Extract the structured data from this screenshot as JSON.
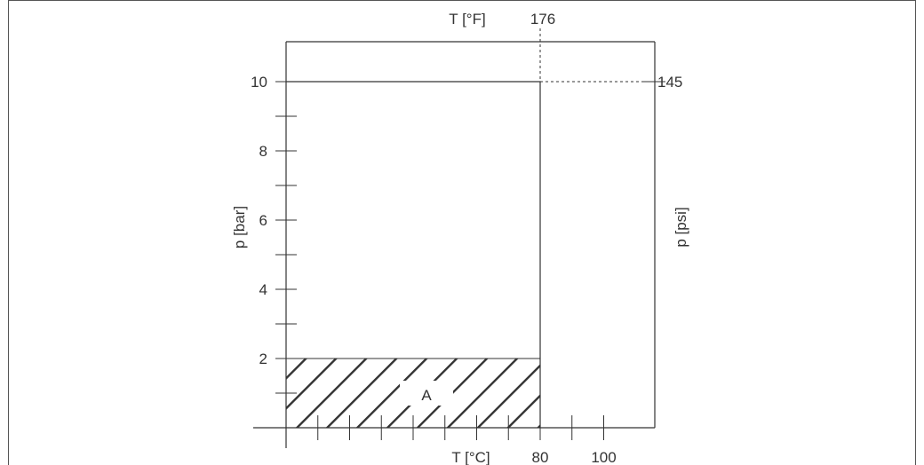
{
  "chart_data": {
    "type": "area",
    "title": "",
    "left_axis": {
      "label": "p [bar]",
      "range": [
        0,
        11
      ],
      "labeled_ticks": [
        2,
        4,
        6,
        8,
        10
      ],
      "minor_ticks": [
        1,
        3,
        5,
        7,
        9
      ],
      "tick_labels": [
        "2",
        "4",
        "6",
        "8",
        "10"
      ]
    },
    "right_axis": {
      "label": "p [psi]",
      "marked_value": "145",
      "marked_at_bar": 10
    },
    "bottom_axis": {
      "label": "T [°C]",
      "range": [
        0,
        115
      ],
      "ticks": [
        10,
        20,
        30,
        40,
        50,
        60,
        70,
        80,
        90,
        100
      ],
      "tick_labels": [
        "80",
        "100"
      ],
      "tick_label_values": [
        80,
        100
      ]
    },
    "top_axis": {
      "label": "T [°F]",
      "marked_value": "176",
      "marked_at_celsius": 80
    },
    "envelope": {
      "x": [
        0,
        80,
        80
      ],
      "y": [
        10,
        10,
        0
      ],
      "description_color": "#333333"
    },
    "region_a": {
      "label": "A",
      "x_range": [
        0,
        80
      ],
      "y_range": [
        0,
        2
      ],
      "pattern": "diagonal-hatch"
    },
    "grid": false
  }
}
